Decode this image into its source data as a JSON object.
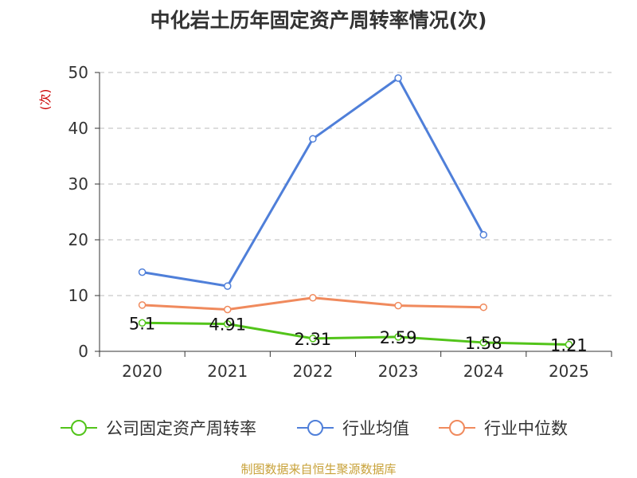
{
  "chart_data": {
    "type": "line",
    "title": "中化岩土历年固定资产周转率情况(次)",
    "ylabel": "(次)",
    "categories": [
      "2020",
      "2021",
      "2022",
      "2023",
      "2024",
      "2025"
    ],
    "ylim": [
      0,
      50
    ],
    "yticks": [
      0,
      10,
      20,
      30,
      40,
      50
    ],
    "grid": true,
    "legend_position": "bottom",
    "series": [
      {
        "name": "公司固定资产周转率",
        "color": "#52c41a",
        "values": [
          5.1,
          4.91,
          2.31,
          2.59,
          1.58,
          1.21
        ],
        "labels": [
          "5.1",
          "4.91",
          "2.31",
          "2.59",
          "1.58",
          "1.21"
        ]
      },
      {
        "name": "行业均值",
        "color": "#4f7fd9",
        "values": [
          14.2,
          11.7,
          38.1,
          49.0,
          20.9,
          null
        ]
      },
      {
        "name": "行业中位数",
        "color": "#f08a5d",
        "values": [
          8.3,
          7.5,
          9.6,
          8.2,
          7.9,
          null
        ]
      }
    ]
  },
  "source": "制图数据来自恒生聚源数据库"
}
